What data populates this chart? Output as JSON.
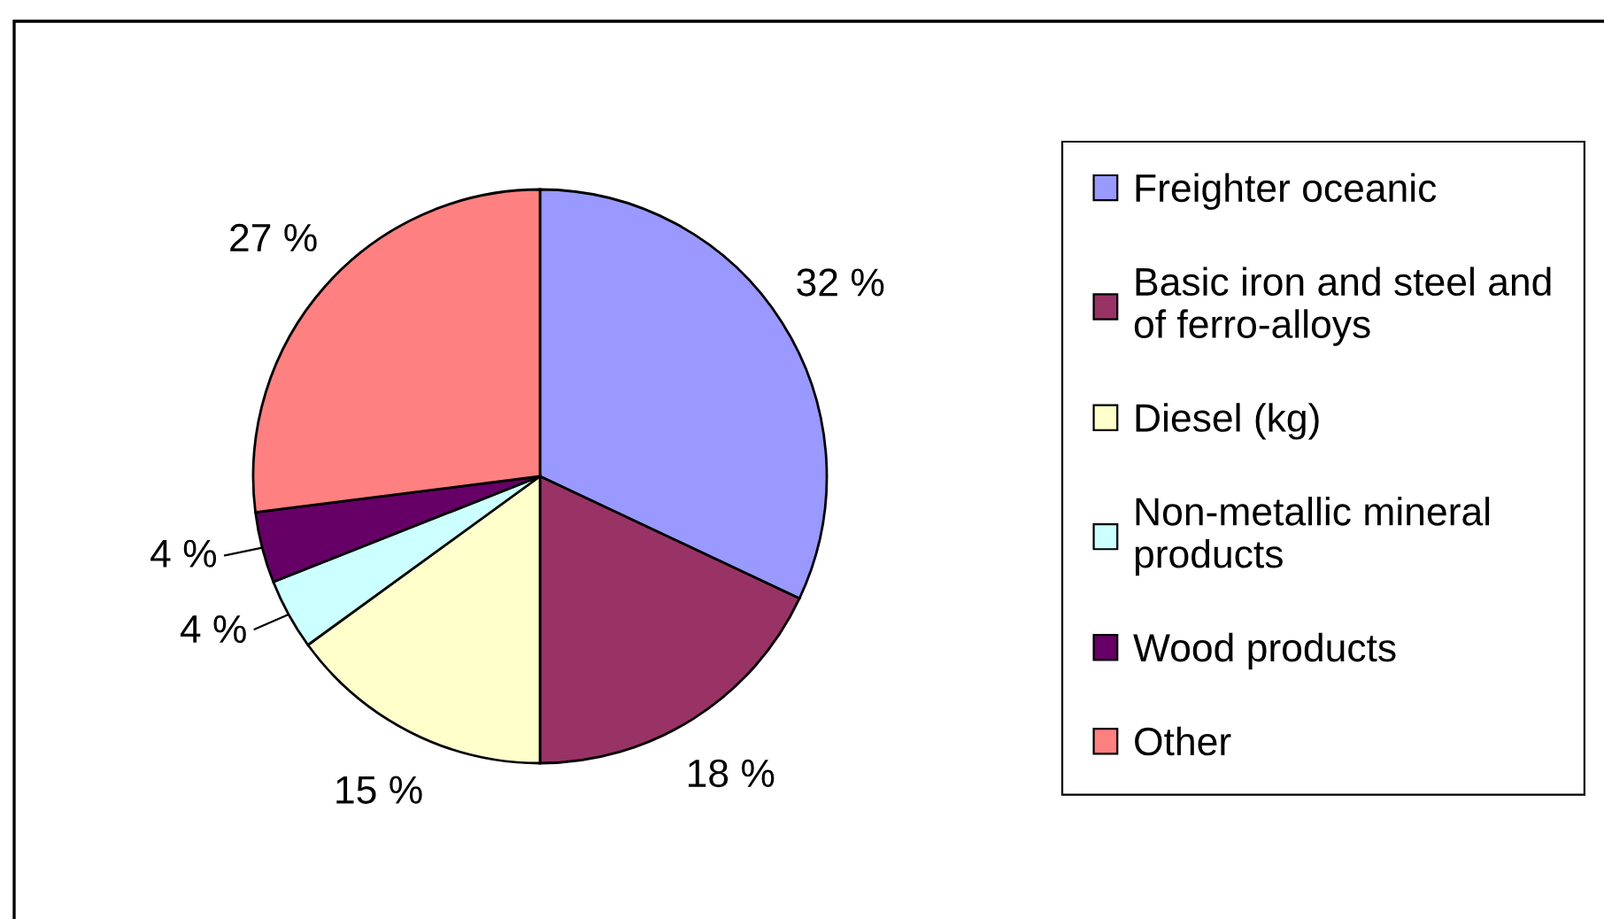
{
  "chart_data": {
    "type": "pie",
    "categories": [
      "Freighter oceanic",
      "Basic iron and steel and of ferro-alloys",
      "Diesel (kg)",
      "Non-metallic mineral products",
      "Wood products",
      "Other"
    ],
    "values": [
      32,
      18,
      15,
      4,
      4,
      27
    ],
    "colors": [
      "#9999ff",
      "#993366",
      "#ffffcc",
      "#ccffff",
      "#660066",
      "#ff8080"
    ],
    "value_labels": [
      "32 %",
      "18 %",
      "15 %",
      "4 %",
      "4 %",
      "27 %"
    ],
    "legend": "right"
  }
}
